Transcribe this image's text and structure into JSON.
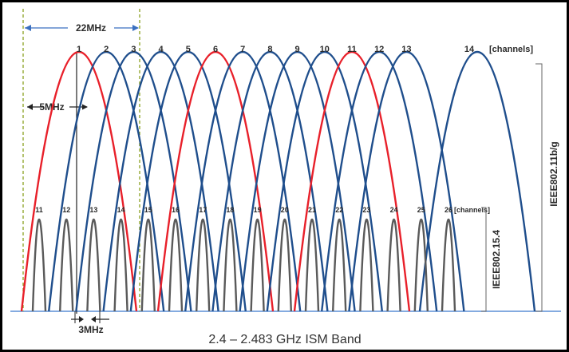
{
  "wifi": {
    "channels": [
      "1",
      "2",
      "3",
      "4",
      "5",
      "6",
      "7",
      "8",
      "9",
      "10",
      "11",
      "12",
      "13",
      "14"
    ],
    "highlighted": [
      "1",
      "6",
      "11"
    ],
    "channels_suffix": "[channels]",
    "standard": "IEEE802.11b/g",
    "spacing_label": "22MHz"
  },
  "zigbee": {
    "channels": [
      "11",
      "12",
      "13",
      "14",
      "15",
      "16",
      "17",
      "18",
      "19",
      "20",
      "21",
      "22",
      "23",
      "24",
      "25",
      "26"
    ],
    "channels_suffix": "[channels]",
    "standard": "IEEE802.15.4",
    "spacing_label": "5MHz",
    "width_label": "3MHz"
  },
  "band_label": "2.4 – 2.483 GHz ISM Band",
  "colors": {
    "wifi_channel": "#1f4e8c",
    "wifi_highlight": "#e8202a",
    "zigbee_channel": "#5a5a5a",
    "guide": "#8aa020",
    "axis": "#5b8fd6"
  }
}
